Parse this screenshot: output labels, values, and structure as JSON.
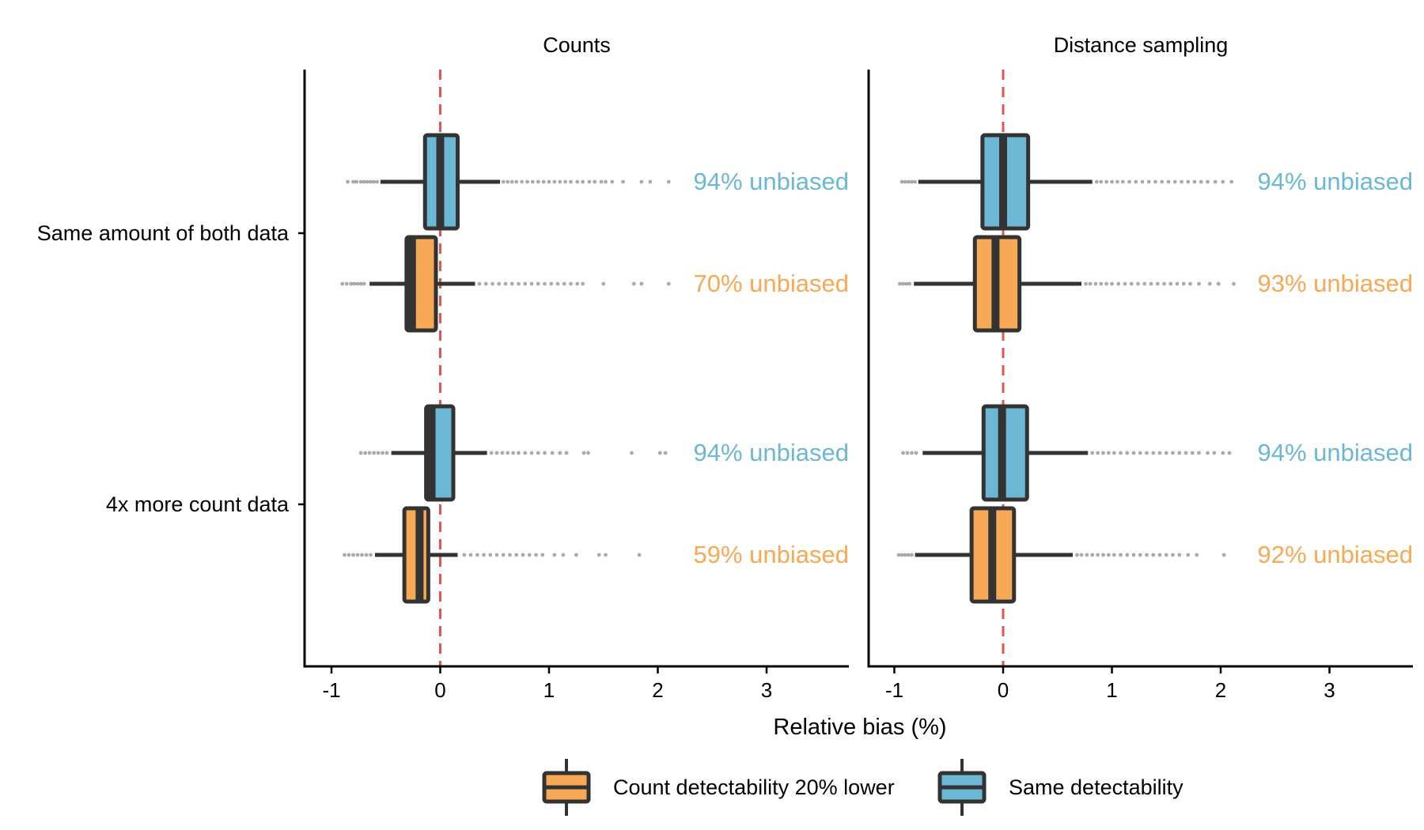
{
  "chart_data": {
    "type": "boxplot",
    "xlabel": "Relative bias (%)",
    "ylabel": "",
    "xlim": [
      -1.25,
      3.75
    ],
    "x_ticks": [
      -1,
      0,
      1,
      2,
      3
    ],
    "x_tick_labels": [
      "-1",
      "0",
      "1",
      "2",
      "3"
    ],
    "reference_line": {
      "x": 0,
      "color": "#e0574c",
      "style": "dashed"
    },
    "categories": [
      "Same amount of both data",
      "4x more count data"
    ],
    "legend": {
      "placement": "bottom",
      "items": [
        {
          "key": "lower",
          "label": "Count detectability 20% lower",
          "color": "#f7a955"
        },
        {
          "key": "same",
          "label": "Same detectability",
          "color": "#6cb8d4"
        }
      ]
    },
    "colors": {
      "same": "#6cb8d4",
      "lower": "#f7a955",
      "box_stroke": "#333333",
      "ref_line": "#e0574c"
    },
    "panels": [
      {
        "title": "Counts",
        "groups": [
          {
            "category": "Same amount of both data",
            "series": [
              {
                "key": "same",
                "q1": -0.14,
                "median": 0.0,
                "q3": 0.16,
                "whisker_low": -0.55,
                "whisker_high": 0.55,
                "annotation": "94% unbiased",
                "outliers": [
                  -0.85,
                  -0.8,
                  -0.77,
                  -0.73,
                  -0.7,
                  -0.67,
                  -0.64,
                  -0.61,
                  -0.58,
                  0.58,
                  0.62,
                  0.66,
                  0.7,
                  0.75,
                  0.8,
                  0.85,
                  0.9,
                  0.95,
                  1.0,
                  1.05,
                  1.1,
                  1.15,
                  1.2,
                  1.26,
                  1.31,
                  1.37,
                  1.42,
                  1.48,
                  1.52,
                  1.58,
                  1.68,
                  1.85,
                  1.93,
                  2.1
                ]
              },
              {
                "key": "lower",
                "q1": -0.31,
                "median": -0.26,
                "q3": -0.04,
                "whisker_low": -0.65,
                "whisker_high": 0.32,
                "annotation": "70% unbiased",
                "outliers": [
                  -0.9,
                  -0.86,
                  -0.82,
                  -0.79,
                  -0.76,
                  -0.73,
                  -0.7,
                  0.36,
                  0.42,
                  0.48,
                  0.54,
                  0.6,
                  0.66,
                  0.72,
                  0.78,
                  0.84,
                  0.9,
                  0.96,
                  1.02,
                  1.08,
                  1.14,
                  1.2,
                  1.26,
                  1.31,
                  1.5,
                  1.78,
                  1.85,
                  2.1
                ]
              }
            ]
          },
          {
            "category": "4x more count data",
            "series": [
              {
                "key": "same",
                "q1": -0.13,
                "median": -0.08,
                "q3": 0.12,
                "whisker_low": -0.45,
                "whisker_high": 0.43,
                "annotation": "94% unbiased",
                "outliers": [
                  -0.73,
                  -0.69,
                  -0.65,
                  -0.61,
                  -0.57,
                  -0.53,
                  -0.49,
                  0.47,
                  0.52,
                  0.57,
                  0.62,
                  0.67,
                  0.72,
                  0.78,
                  0.84,
                  0.9,
                  0.96,
                  1.03,
                  1.1,
                  1.16,
                  1.32,
                  1.36,
                  1.76,
                  2.02,
                  2.07
                ]
              },
              {
                "key": "lower",
                "q1": -0.33,
                "median": -0.19,
                "q3": -0.11,
                "whisker_low": -0.6,
                "whisker_high": 0.16,
                "annotation": "59% unbiased",
                "outliers": [
                  -0.88,
                  -0.84,
                  -0.8,
                  -0.76,
                  -0.72,
                  -0.68,
                  -0.64,
                  0.22,
                  0.28,
                  0.34,
                  0.4,
                  0.46,
                  0.52,
                  0.58,
                  0.64,
                  0.7,
                  0.76,
                  0.82,
                  0.88,
                  0.94,
                  1.05,
                  1.13,
                  1.25,
                  1.46,
                  1.52,
                  1.83
                ]
              }
            ]
          }
        ]
      },
      {
        "title": "Distance sampling",
        "groups": [
          {
            "category": "Same amount of both data",
            "series": [
              {
                "key": "same",
                "q1": -0.19,
                "median": 0.0,
                "q3": 0.23,
                "whisker_low": -0.78,
                "whisker_high": 0.82,
                "annotation": "94% unbiased",
                "outliers": [
                  -0.93,
                  -0.9,
                  -0.87,
                  -0.84,
                  -0.81,
                  0.86,
                  0.9,
                  0.95,
                  1.0,
                  1.05,
                  1.1,
                  1.16,
                  1.22,
                  1.28,
                  1.34,
                  1.4,
                  1.46,
                  1.52,
                  1.58,
                  1.64,
                  1.7,
                  1.76,
                  1.82,
                  1.88,
                  1.95,
                  2.02,
                  2.1
                ]
              },
              {
                "key": "lower",
                "q1": -0.26,
                "median": -0.07,
                "q3": 0.15,
                "whisker_low": -0.82,
                "whisker_high": 0.72,
                "annotation": "93% unbiased",
                "outliers": [
                  -0.95,
                  -0.92,
                  -0.89,
                  -0.86,
                  0.76,
                  0.8,
                  0.85,
                  0.9,
                  0.95,
                  1.0,
                  1.06,
                  1.12,
                  1.18,
                  1.24,
                  1.3,
                  1.36,
                  1.42,
                  1.48,
                  1.54,
                  1.6,
                  1.66,
                  1.72,
                  1.8,
                  1.9,
                  1.98,
                  2.12
                ]
              }
            ]
          },
          {
            "category": "4x more count data",
            "series": [
              {
                "key": "same",
                "q1": -0.18,
                "median": -0.01,
                "q3": 0.22,
                "whisker_low": -0.74,
                "whisker_high": 0.78,
                "annotation": "94% unbiased",
                "outliers": [
                  -0.92,
                  -0.88,
                  -0.84,
                  -0.8,
                  0.82,
                  0.87,
                  0.92,
                  0.97,
                  1.02,
                  1.08,
                  1.14,
                  1.2,
                  1.26,
                  1.32,
                  1.38,
                  1.44,
                  1.5,
                  1.56,
                  1.62,
                  1.68,
                  1.74,
                  1.8,
                  1.88,
                  1.94,
                  2.02,
                  2.08
                ]
              },
              {
                "key": "lower",
                "q1": -0.29,
                "median": -0.1,
                "q3": 0.1,
                "whisker_low": -0.81,
                "whisker_high": 0.64,
                "annotation": "92% unbiased",
                "outliers": [
                  -0.96,
                  -0.93,
                  -0.9,
                  -0.87,
                  -0.84,
                  0.68,
                  0.72,
                  0.77,
                  0.82,
                  0.87,
                  0.92,
                  0.97,
                  1.02,
                  1.08,
                  1.14,
                  1.2,
                  1.26,
                  1.32,
                  1.38,
                  1.44,
                  1.5,
                  1.56,
                  1.62,
                  1.7,
                  1.78,
                  2.03
                ]
              }
            ]
          }
        ]
      }
    ]
  }
}
